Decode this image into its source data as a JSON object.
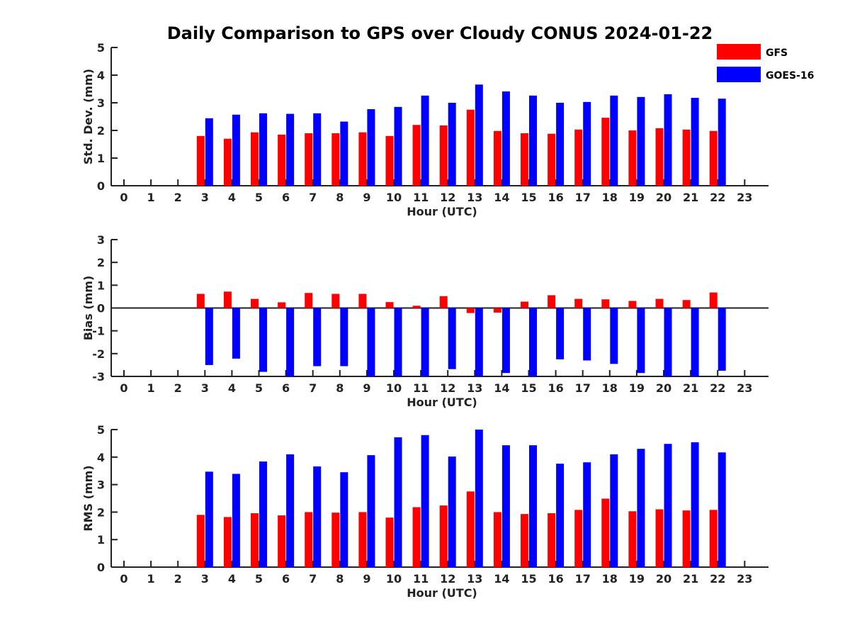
{
  "title": "Daily Comparison to GPS over Cloudy CONUS 2024-01-22",
  "legend": {
    "placement": "top-right",
    "entries": [
      {
        "name": "GFS",
        "color": "#ff0000"
      },
      {
        "name": "GOES-16",
        "color": "#0000ff"
      }
    ]
  },
  "chart_data": [
    {
      "type": "bar",
      "xlabel": "Hour (UTC)",
      "ylabel": "Std. Dev. (mm)",
      "ylim": [
        0,
        5
      ],
      "yticks": [
        0,
        1,
        2,
        3,
        4,
        5
      ],
      "categories": [
        "0",
        "1",
        "2",
        "3",
        "4",
        "5",
        "6",
        "7",
        "8",
        "9",
        "10",
        "11",
        "12",
        "13",
        "14",
        "15",
        "16",
        "17",
        "18",
        "19",
        "20",
        "21",
        "22",
        "23"
      ],
      "series": [
        {
          "name": "GFS",
          "color": "#ff0000",
          "values": [
            null,
            null,
            null,
            1.8,
            1.7,
            1.93,
            1.85,
            1.9,
            1.9,
            1.93,
            1.8,
            2.2,
            2.18,
            2.75,
            1.98,
            1.9,
            1.88,
            2.03,
            2.46,
            2.0,
            2.08,
            2.03,
            1.98,
            null
          ]
        },
        {
          "name": "GOES-16",
          "color": "#0000ff",
          "values": [
            null,
            null,
            null,
            2.44,
            2.57,
            2.62,
            2.6,
            2.62,
            2.32,
            2.77,
            2.85,
            3.26,
            3.0,
            3.66,
            3.41,
            3.26,
            3.0,
            3.03,
            3.26,
            3.21,
            3.31,
            3.18,
            3.15,
            null
          ]
        }
      ]
    },
    {
      "type": "bar",
      "xlabel": "Hour (UTC)",
      "ylabel": "Bias (mm)",
      "ylim": [
        -3,
        3
      ],
      "yticks": [
        -3,
        -2,
        -1,
        0,
        1,
        2,
        3
      ],
      "zero_line": true,
      "categories": [
        "0",
        "1",
        "2",
        "3",
        "4",
        "5",
        "6",
        "7",
        "8",
        "9",
        "10",
        "11",
        "12",
        "13",
        "14",
        "15",
        "16",
        "17",
        "18",
        "19",
        "20",
        "21",
        "22",
        "23"
      ],
      "series": [
        {
          "name": "GFS",
          "color": "#ff0000",
          "values": [
            null,
            null,
            null,
            0.62,
            0.72,
            0.4,
            0.25,
            0.66,
            0.62,
            0.62,
            0.26,
            0.1,
            0.52,
            -0.22,
            -0.2,
            0.28,
            0.56,
            0.4,
            0.38,
            0.31,
            0.4,
            0.35,
            0.68,
            null
          ]
        },
        {
          "name": "GOES-16",
          "color": "#0000ff",
          "values": [
            null,
            null,
            null,
            -2.5,
            -2.22,
            -2.8,
            -3.0,
            -2.55,
            -2.55,
            -3.0,
            -3.0,
            -3.0,
            -2.68,
            -3.0,
            -2.85,
            -3.0,
            -2.25,
            -2.3,
            -2.45,
            -2.85,
            -3.0,
            -3.0,
            -2.75,
            null
          ]
        }
      ]
    },
    {
      "type": "bar",
      "xlabel": "Hour (UTC)",
      "ylabel": "RMS (mm)",
      "ylim": [
        0,
        5
      ],
      "yticks": [
        0,
        1,
        2,
        3,
        4,
        5
      ],
      "categories": [
        "0",
        "1",
        "2",
        "3",
        "4",
        "5",
        "6",
        "7",
        "8",
        "9",
        "10",
        "11",
        "12",
        "13",
        "14",
        "15",
        "16",
        "17",
        "18",
        "19",
        "20",
        "21",
        "22",
        "23"
      ],
      "series": [
        {
          "name": "GFS",
          "color": "#ff0000",
          "values": [
            null,
            null,
            null,
            1.9,
            1.82,
            1.96,
            1.88,
            2.0,
            1.98,
            2.0,
            1.8,
            2.18,
            2.24,
            2.75,
            2.0,
            1.93,
            1.96,
            2.08,
            2.49,
            2.03,
            2.1,
            2.06,
            2.08,
            null
          ]
        },
        {
          "name": "GOES-16",
          "color": "#0000ff",
          "values": [
            null,
            null,
            null,
            3.47,
            3.39,
            3.84,
            4.1,
            3.66,
            3.45,
            4.07,
            4.72,
            4.8,
            4.02,
            5.0,
            4.43,
            4.43,
            3.76,
            3.81,
            4.1,
            4.3,
            4.48,
            4.54,
            4.17,
            null
          ]
        }
      ]
    }
  ]
}
